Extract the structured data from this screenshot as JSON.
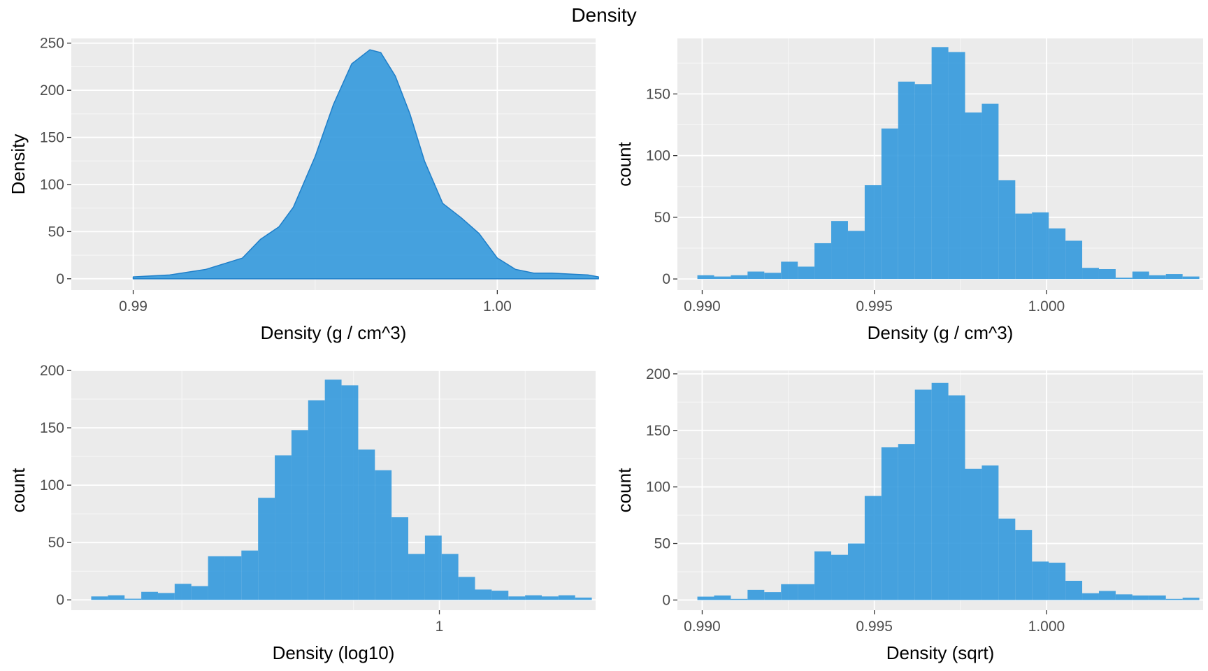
{
  "title": "Density",
  "chart_data": [
    {
      "type": "area",
      "xlabel": "Density (g / cm^3)",
      "ylabel": "Density",
      "xlim": [
        0.9883,
        1.0027
      ],
      "ylim": [
        -12,
        255
      ],
      "x_ticks": [
        {
          "value": 0.99,
          "label": "0.99"
        },
        {
          "value": 1.0,
          "label": "1.00"
        }
      ],
      "y_ticks": [
        0,
        50,
        100,
        150,
        200,
        250
      ],
      "fill": "#3399dd",
      "x": [
        0.99,
        0.991,
        0.992,
        0.993,
        0.9935,
        0.994,
        0.9944,
        0.995,
        0.9955,
        0.996,
        0.9965,
        0.9968,
        0.9972,
        0.9976,
        0.998,
        0.9985,
        0.999,
        0.9995,
        1.0,
        1.0005,
        1.001,
        1.0015,
        1.002,
        1.0025,
        1.00278
      ],
      "values": [
        2,
        4,
        10,
        22,
        42,
        55,
        76,
        130,
        185,
        228,
        243,
        240,
        215,
        175,
        125,
        80,
        65,
        48,
        22,
        10,
        6,
        6,
        5,
        4,
        2
      ]
    },
    {
      "type": "bar",
      "xlabel": "Density (g / cm^3)",
      "ylabel": "count",
      "xlim": [
        0.98928,
        1.00455
      ],
      "ylim": [
        -9,
        195
      ],
      "x_ticks": [
        {
          "value": 0.99,
          "label": "0.990"
        },
        {
          "value": 0.995,
          "label": "0.995"
        },
        {
          "value": 1.0,
          "label": "1.000"
        }
      ],
      "y_ticks": [
        0,
        50,
        100,
        150
      ],
      "fill": "#3399dd",
      "bin_start": 0.98986,
      "bin_width": 0.000486,
      "values": [
        3,
        2,
        3,
        6,
        5,
        14,
        10,
        29,
        47,
        39,
        76,
        122,
        160,
        158,
        188,
        184,
        135,
        142,
        80,
        53,
        54,
        41,
        31,
        9,
        8,
        1,
        6,
        3,
        4,
        2
      ]
    },
    {
      "type": "bar",
      "xlabel": "Density (log10)",
      "ylabel": "count",
      "xlim": [
        0.98928,
        1.00455
      ],
      "ylim": [
        -9,
        200
      ],
      "x_ticks": [
        {
          "value": 1.0,
          "label": "1"
        }
      ],
      "y_ticks": [
        0,
        50,
        100,
        150,
        200
      ],
      "fill": "#3399dd",
      "bin_start": 0.98986,
      "bin_width": 0.000486,
      "values": [
        3,
        4,
        1,
        7,
        6,
        14,
        12,
        38,
        38,
        43,
        89,
        126,
        148,
        174,
        192,
        187,
        131,
        113,
        72,
        40,
        56,
        40,
        20,
        9,
        8,
        3,
        4,
        3,
        4,
        2
      ]
    },
    {
      "type": "bar",
      "xlabel": "Density (sqrt)",
      "ylabel": "count",
      "xlim": [
        0.98928,
        1.00455
      ],
      "ylim": [
        -9,
        203
      ],
      "x_ticks": [
        {
          "value": 0.99,
          "label": "0.990"
        },
        {
          "value": 0.995,
          "label": "0.995"
        },
        {
          "value": 1.0,
          "label": "1.000"
        }
      ],
      "y_ticks": [
        0,
        50,
        100,
        150,
        200
      ],
      "fill": "#3399dd",
      "bin_start": 0.98986,
      "bin_width": 0.000486,
      "values": [
        3,
        4,
        1,
        9,
        7,
        14,
        14,
        43,
        40,
        50,
        92,
        135,
        138,
        186,
        192,
        181,
        116,
        119,
        72,
        62,
        34,
        33,
        17,
        6,
        8,
        5,
        4,
        4,
        1,
        2
      ]
    }
  ]
}
